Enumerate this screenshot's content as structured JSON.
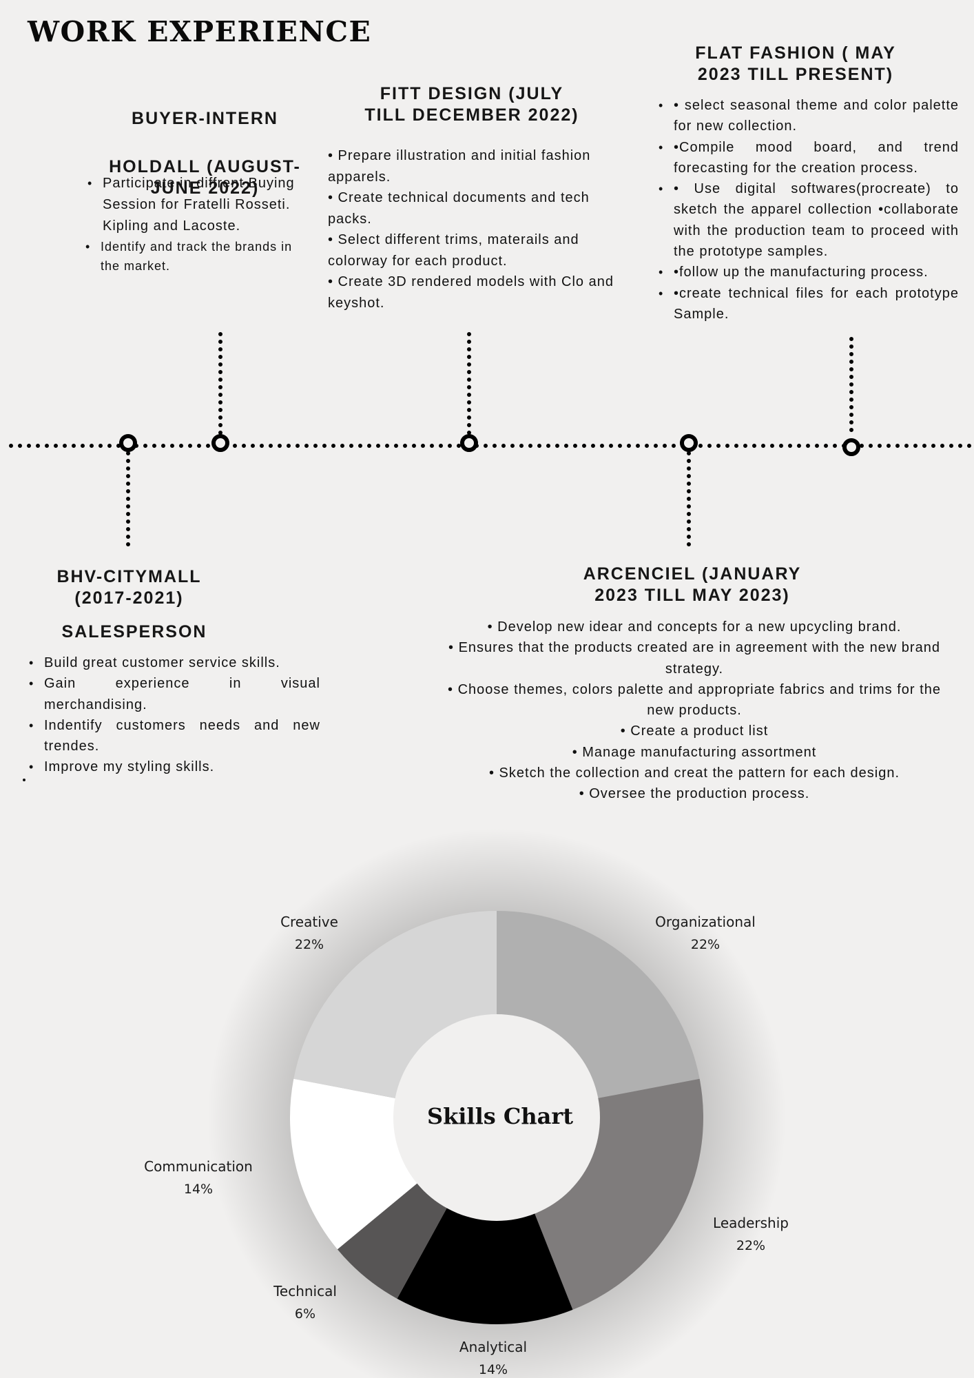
{
  "page_title": "WORK EXPERIENCE",
  "jobs": {
    "buyer_intern": {
      "title_line1": "BUYER-INTERN",
      "title_line2": "HOLDALL (AUGUST-\nJUNE 2022)",
      "bullets": [
        "Participate in diffrent Buying Session for Fratelli Rosseti. Kipling and Lacoste.",
        "Identify and track the brands in the market."
      ]
    },
    "fitt_design": {
      "title": "FITT DESIGN (JULY\nTILL DECEMBER 2022)",
      "bullets": [
        "• Prepare illustration and initial fashion apparels.",
        "• Create technical documents and tech packs.",
        "• Select different trims, materails and colorway for each product.",
        "• Create 3D rendered models with Clo and keyshot."
      ]
    },
    "flat_fashion": {
      "title": "FLAT FASHION ( MAY\n2023  TILL PRESENT)",
      "bullets": [
        "• select seasonal theme and color palette for  new collection.",
        "•Compile mood board, and trend forecasting for the creation process.",
        "• Use digital softwares(procreate) to sketch the apparel collection •collaborate with the production team to proceed with the prototype samples.",
        "•follow up the manufacturing process.",
        "•create technical files for each prototype Sample."
      ]
    },
    "bhv_citymall": {
      "title": "BHV-CITYMALL\n(2017-2021)",
      "role": "SALESPERSON",
      "bullets": [
        "Build great customer service skills.",
        "Gain experience in visual merchandising.",
        "Indentify customers needs and new trendes.",
        "Improve my styling skills."
      ]
    },
    "arcenciel": {
      "title": "ARCENCIEL (JANUARY\n2023 TILL MAY 2023)",
      "bullets": [
        "• Develop new idear and concepts for a new upcycling brand.",
        "• Ensures that the products created are in agreement with the new brand strategy.",
        "• Choose themes, colors palette and appropriate fabrics and trims for the new products.",
        "• Create a product list",
        "• Manage manufacturing assortment",
        "• Sketch the collection and creat the pattern for each design.",
        "• Oversee the production process."
      ]
    }
  },
  "chart_data": {
    "type": "pie",
    "title": "Skills Chart",
    "slices": [
      {
        "label": "Organizational",
        "value": 22,
        "display": "22%",
        "color": "#b0b0b0"
      },
      {
        "label": "Leadership",
        "value": 22,
        "display": "22%",
        "color": "#7f7c7c"
      },
      {
        "label": "Analytical",
        "value": 14,
        "display": "14%",
        "color": "#000000"
      },
      {
        "label": "Technical",
        "value": 6,
        "display": "6%",
        "color": "#575555"
      },
      {
        "label": "Communication",
        "value": 14,
        "display": "14%",
        "color": "#ffffff"
      },
      {
        "label": "Creative",
        "value": 22,
        "display": "22%",
        "color": "#d6d6d6"
      }
    ]
  }
}
